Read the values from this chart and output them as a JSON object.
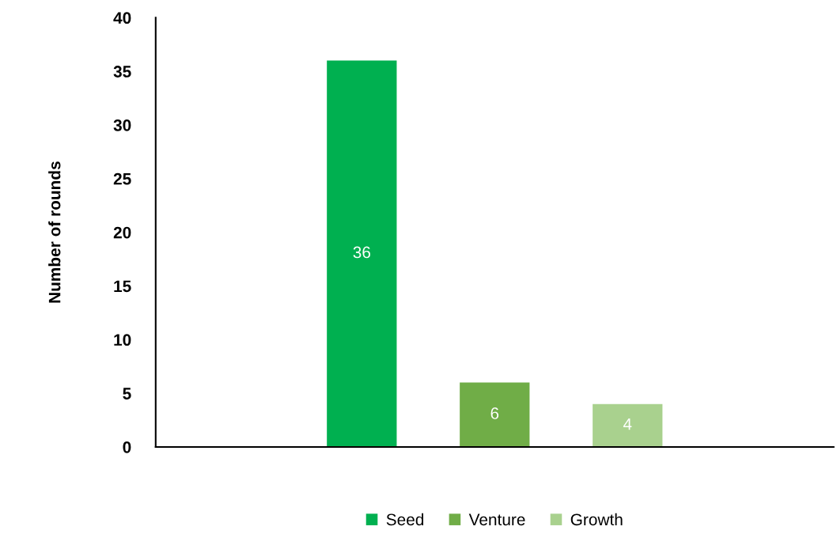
{
  "chart_data": {
    "type": "bar",
    "ylabel": "Number of rounds",
    "categories": [
      null
    ],
    "series": [
      {
        "name": "Seed",
        "color": "#00b050",
        "values": [
          36
        ],
        "value_labels": [
          "36"
        ]
      },
      {
        "name": "Venture",
        "color": "#70ad47",
        "values": [
          6
        ],
        "value_labels": [
          "6"
        ]
      },
      {
        "name": "Growth",
        "color": "#a9d18e",
        "values": [
          4
        ],
        "value_labels": [
          "4"
        ]
      }
    ],
    "ylim": [
      0,
      40
    ],
    "yticks": [
      0,
      5,
      10,
      15,
      20,
      25,
      30,
      35,
      40
    ],
    "grid": false,
    "legend": "bottom"
  }
}
